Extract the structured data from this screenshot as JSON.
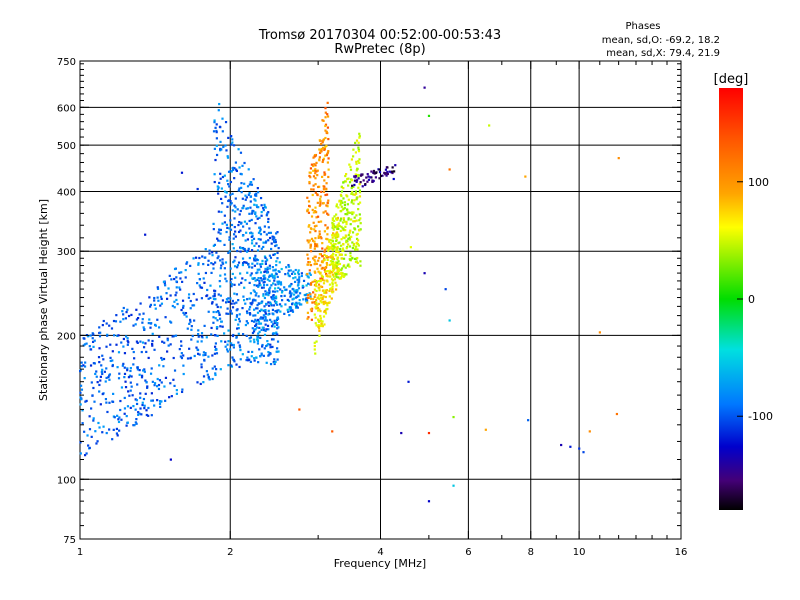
{
  "chart_data": {
    "type": "scatter",
    "title": "Tromsø 20170304 00:52:00-00:53:43",
    "subtitle": "RwPretec (8p)",
    "xlabel": "Frequency [MHz]",
    "ylabel": "Stationary phase Virtual Height [km]",
    "x_scale": "log",
    "y_scale": "log",
    "xlim": [
      1,
      16
    ],
    "ylim": [
      75,
      750
    ],
    "grid": true,
    "x_ticks": [
      1,
      2,
      4,
      6,
      8,
      10,
      16
    ],
    "x_tick_labels": [
      "1",
      "2",
      "4",
      "6",
      "8",
      "10",
      "16"
    ],
    "y_ticks": [
      75,
      100,
      200,
      300,
      400,
      500,
      600,
      750
    ],
    "y_tick_labels": [
      "75",
      "100",
      "200",
      "300",
      "400",
      "500",
      "600",
      "750"
    ],
    "legend": {
      "title": "Phases",
      "lines": [
        "mean, sd,O: -69.2, 18.2",
        "mean, sd,X:  79.4, 21.9"
      ],
      "position": "top-right"
    },
    "colorbar": {
      "label": "[deg]",
      "ticks": [
        100,
        0,
        -100
      ],
      "tick_labels": [
        "100",
        "0",
        "-100"
      ],
      "range": [
        -180,
        180
      ]
    },
    "clusters": [
      {
        "name": "",
        "phase": -80,
        "x_min": 1.0,
        "x_max": 1.9,
        "y_at_min": [
          110,
          200
        ],
        "y_at_max": [
          165,
          320
        ],
        "approx_points": 520
      },
      {
        "name": "",
        "phase": -75,
        "x_min": 1.85,
        "x_max": 2.5,
        "y_at_min": [
          165,
          650
        ],
        "y_at_max": [
          175,
          330
        ],
        "approx_points": 650
      },
      {
        "name": "",
        "phase": -65,
        "x_min": 2.2,
        "x_max": 2.9,
        "y_at_min": [
          190,
          300
        ],
        "y_at_max": [
          240,
          270
        ],
        "approx_points": 220
      },
      {
        "name": "",
        "phase": 120,
        "x_min": 2.85,
        "x_max": 3.15,
        "y_at_min": [
          200,
          420
        ],
        "y_at_max": [
          280,
          640
        ],
        "approx_points": 260
      },
      {
        "name": "",
        "phase": 85,
        "x_min": 2.95,
        "x_max": 3.3,
        "y_at_min": [
          180,
          260
        ],
        "y_at_max": [
          260,
          360
        ],
        "approx_points": 210
      },
      {
        "name": "",
        "phase": 60,
        "x_min": 3.2,
        "x_max": 3.65,
        "y_at_min": [
          260,
          350
        ],
        "y_at_max": [
          270,
          560
        ],
        "approx_points": 300
      },
      {
        "name": "",
        "phase": -150,
        "x_min": 3.5,
        "x_max": 4.3,
        "y_at_min": [
          400,
          430
        ],
        "y_at_max": [
          440,
          460
        ],
        "approx_points": 60
      }
    ],
    "outliers": [
      {
        "x": 1.05,
        "y": 200,
        "phase": -70
      },
      {
        "x": 1.35,
        "y": 325,
        "phase": -110
      },
      {
        "x": 1.52,
        "y": 110,
        "phase": -120
      },
      {
        "x": 1.6,
        "y": 438,
        "phase": -110
      },
      {
        "x": 1.72,
        "y": 405,
        "phase": -100
      },
      {
        "x": 2.75,
        "y": 140,
        "phase": 140
      },
      {
        "x": 3.2,
        "y": 126,
        "phase": 140
      },
      {
        "x": 4.25,
        "y": 425,
        "phase": -120
      },
      {
        "x": 4.6,
        "y": 306,
        "phase": 70
      },
      {
        "x": 4.4,
        "y": 125,
        "phase": -130
      },
      {
        "x": 4.55,
        "y": 160,
        "phase": -110
      },
      {
        "x": 4.9,
        "y": 660,
        "phase": -140
      },
      {
        "x": 5.0,
        "y": 576,
        "phase": 10
      },
      {
        "x": 4.9,
        "y": 270,
        "phase": -130
      },
      {
        "x": 5.0,
        "y": 125,
        "phase": 160
      },
      {
        "x": 5.0,
        "y": 90,
        "phase": -120
      },
      {
        "x": 5.5,
        "y": 445,
        "phase": 130
      },
      {
        "x": 5.4,
        "y": 250,
        "phase": -90
      },
      {
        "x": 5.6,
        "y": 135,
        "phase": 40
      },
      {
        "x": 5.5,
        "y": 215,
        "phase": -40
      },
      {
        "x": 5.6,
        "y": 97,
        "phase": -40
      },
      {
        "x": 6.6,
        "y": 550,
        "phase": 60
      },
      {
        "x": 6.5,
        "y": 127,
        "phase": 110
      },
      {
        "x": 7.9,
        "y": 133,
        "phase": -80
      },
      {
        "x": 7.8,
        "y": 430,
        "phase": 110
      },
      {
        "x": 9.2,
        "y": 118,
        "phase": -130
      },
      {
        "x": 9.6,
        "y": 117,
        "phase": -110
      },
      {
        "x": 10.0,
        "y": 116,
        "phase": -100
      },
      {
        "x": 10.2,
        "y": 114,
        "phase": -90
      },
      {
        "x": 10.5,
        "y": 126,
        "phase": 120
      },
      {
        "x": 11.0,
        "y": 203,
        "phase": 120
      },
      {
        "x": 11.9,
        "y": 137,
        "phase": 130
      },
      {
        "x": 12.0,
        "y": 470,
        "phase": 120
      }
    ]
  }
}
